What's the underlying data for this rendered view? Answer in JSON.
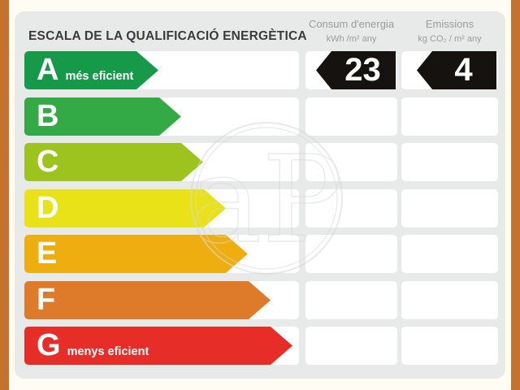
{
  "certificate": {
    "title": "ESCALA DE LA QUALIFICACIÓ ENERGÈTICA",
    "columns": [
      {
        "id": "consum",
        "line1": "Consum d'energia",
        "line2": "kWh /m² any"
      },
      {
        "id": "emissions",
        "line1": "Emissions",
        "line2": "kg CO₂ / m² any"
      }
    ]
  },
  "chart_data": {
    "type": "table",
    "title": "ESCALA DE LA QUALIFICACIÓ ENERGÈTICA",
    "columns": [
      "Consum d'energia (kWh/m² any)",
      "Emissions (kg CO₂/m² any)"
    ],
    "bands": [
      {
        "letter": "A",
        "label": "més eficient",
        "color": "#17994a",
        "arrow_width": 165
      },
      {
        "letter": "B",
        "label": "",
        "color": "#34aa47",
        "arrow_width": 193
      },
      {
        "letter": "C",
        "label": "",
        "color": "#9cc31e",
        "arrow_width": 220
      },
      {
        "letter": "D",
        "label": "",
        "color": "#e9e218",
        "arrow_width": 248
      },
      {
        "letter": "E",
        "label": "",
        "color": "#efae10",
        "arrow_width": 275
      },
      {
        "letter": "F",
        "label": "",
        "color": "#de7b2a",
        "arrow_width": 303
      },
      {
        "letter": "G",
        "label": "menys eficient",
        "color": "#e62d28",
        "arrow_width": 330
      }
    ],
    "rating": {
      "band": "A",
      "consum": "23",
      "emissions": "4"
    }
  },
  "watermark": {
    "text": "aP"
  },
  "colors": {
    "frame_orange": "#c4722e",
    "page_bg": "#fffdf3",
    "panel_bg": "#e8e9e9",
    "cell_bg": "#ffffff",
    "badge_bg": "#161210",
    "title_text": "#3b3b3a",
    "header_text": "#9b9b9b"
  }
}
